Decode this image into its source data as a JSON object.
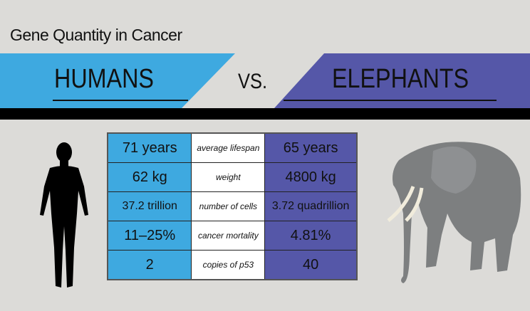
{
  "title": "Gene Quantity in Cancer",
  "header": {
    "left": "HUMANS",
    "vs": "VS.",
    "right": "ELEPHANTS"
  },
  "colors": {
    "humans": "#3ea9e0",
    "elephants": "#5557a8",
    "background": "#dcdbd8",
    "bar": "#000000"
  },
  "table": {
    "rows": [
      {
        "human": "71 years",
        "label": "average lifespan",
        "elephant": "65 years"
      },
      {
        "human": "62 kg",
        "label": "weight",
        "elephant": "4800 kg"
      },
      {
        "human": "37.2 trillion",
        "label": "number of cells",
        "elephant": "3.72 quadrillion"
      },
      {
        "human": "11–25%",
        "label": "cancer mortality",
        "elephant": "4.81%"
      },
      {
        "human": "2",
        "label": "copies of p53",
        "elephant": "40"
      }
    ]
  },
  "images": {
    "left": "human-silhouette",
    "right": "elephant-photo"
  }
}
